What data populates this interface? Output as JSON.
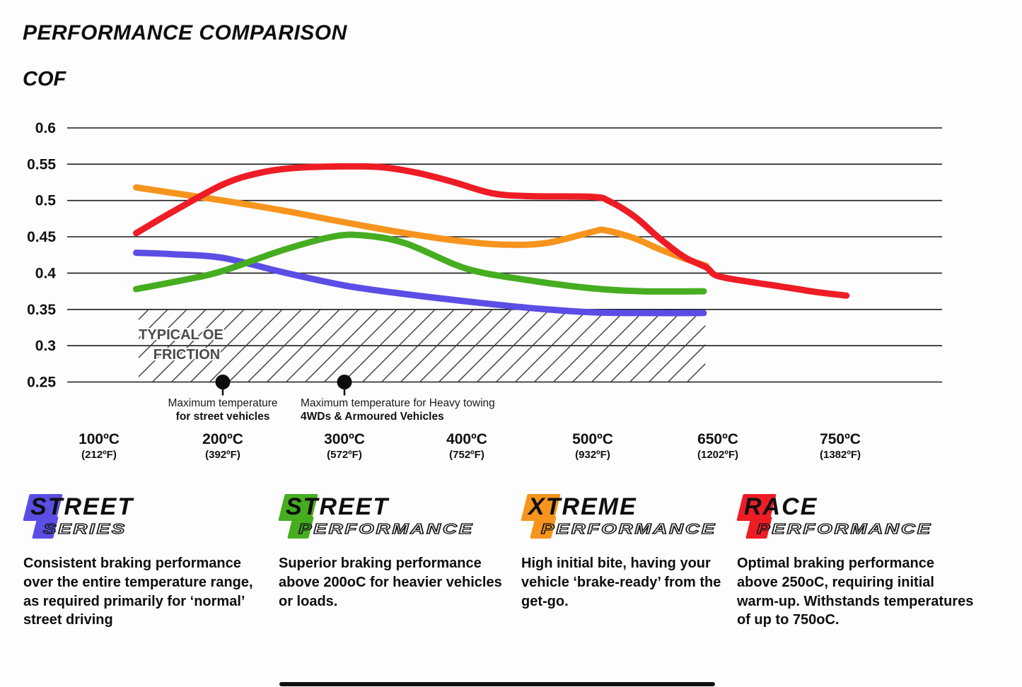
{
  "header": {
    "title": "PERFORMANCE COMPARISON",
    "axis_title": "COF"
  },
  "chart_data": {
    "type": "line",
    "title": "PERFORMANCE COMPARISON",
    "ylabel": "COF",
    "xlabel": "",
    "grid": "horizontal",
    "ylim": [
      0.25,
      0.6
    ],
    "ytick_step": 0.05,
    "yticks": [
      {
        "v": 0.6,
        "label": "0.6"
      },
      {
        "v": 0.55,
        "label": "0.55"
      },
      {
        "v": 0.5,
        "label": "0.5"
      },
      {
        "v": 0.45,
        "label": "0.45"
      },
      {
        "v": 0.4,
        "label": "0.4"
      },
      {
        "v": 0.35,
        "label": "0.35"
      },
      {
        "v": 0.3,
        "label": "0.3"
      },
      {
        "v": 0.25,
        "label": "0.25"
      }
    ],
    "xticks": [
      {
        "t": 100,
        "label": "100ºC",
        "sub": "(212ºF)"
      },
      {
        "t": 200,
        "label": "200ºC",
        "sub": "(392ºF)"
      },
      {
        "t": 300,
        "label": "300ºC",
        "sub": "(572ºF)"
      },
      {
        "t": 400,
        "label": "400ºC",
        "sub": "(752ºF)"
      },
      {
        "t": 500,
        "label": "500ºC",
        "sub": "(932ºF)"
      },
      {
        "t": 650,
        "label": "650ºC",
        "sub": "(1202ºF)"
      },
      {
        "t": 750,
        "label": "750ºC",
        "sub": "(1382ºF)"
      }
    ],
    "series": [
      {
        "name": "Street Series",
        "color": "#5b4ee4",
        "points": [
          [
            130,
            0.428
          ],
          [
            160,
            0.426
          ],
          [
            200,
            0.421
          ],
          [
            250,
            0.401
          ],
          [
            300,
            0.383
          ],
          [
            350,
            0.371
          ],
          [
            400,
            0.361
          ],
          [
            450,
            0.352
          ],
          [
            500,
            0.346
          ],
          [
            560,
            0.345
          ],
          [
            633,
            0.345
          ]
        ]
      },
      {
        "name": "Street Performance",
        "color": "#46ad21",
        "points": [
          [
            130,
            0.378
          ],
          [
            170,
            0.391
          ],
          [
            200,
            0.403
          ],
          [
            250,
            0.432
          ],
          [
            290,
            0.45
          ],
          [
            315,
            0.452
          ],
          [
            350,
            0.441
          ],
          [
            400,
            0.406
          ],
          [
            450,
            0.39
          ],
          [
            500,
            0.379
          ],
          [
            560,
            0.375
          ],
          [
            633,
            0.375
          ]
        ]
      },
      {
        "name": "Xtreme Performance",
        "color": "#f7941e",
        "points": [
          [
            130,
            0.518
          ],
          [
            200,
            0.5
          ],
          [
            250,
            0.486
          ],
          [
            300,
            0.47
          ],
          [
            350,
            0.455
          ],
          [
            400,
            0.443
          ],
          [
            435,
            0.439
          ],
          [
            465,
            0.442
          ],
          [
            500,
            0.457
          ],
          [
            515,
            0.459
          ],
          [
            550,
            0.448
          ],
          [
            580,
            0.433
          ],
          [
            610,
            0.42
          ],
          [
            636,
            0.41
          ]
        ]
      },
      {
        "name": "Race Performance",
        "color": "#ee1c25",
        "points": [
          [
            130,
            0.455
          ],
          [
            160,
            0.485
          ],
          [
            200,
            0.522
          ],
          [
            230,
            0.538
          ],
          [
            260,
            0.545
          ],
          [
            300,
            0.547
          ],
          [
            330,
            0.546
          ],
          [
            360,
            0.538
          ],
          [
            390,
            0.525
          ],
          [
            420,
            0.51
          ],
          [
            450,
            0.506
          ],
          [
            500,
            0.505
          ],
          [
            520,
            0.499
          ],
          [
            550,
            0.478
          ],
          [
            580,
            0.448
          ],
          [
            610,
            0.422
          ],
          [
            636,
            0.408
          ],
          [
            650,
            0.396
          ],
          [
            680,
            0.387
          ],
          [
            700,
            0.382
          ],
          [
            730,
            0.374
          ],
          [
            755,
            0.369
          ]
        ]
      }
    ],
    "oe_band": {
      "label_line1": "TYPICAL OE",
      "label_line2": "FRICTION",
      "t_start": 132,
      "t_end": 635,
      "cof_top": 0.35,
      "cof_bottom": 0.25
    },
    "annotations": [
      {
        "t": 200,
        "align": "center",
        "line1": "Maximum temperature",
        "line2": "for street vehicles"
      },
      {
        "t": 300,
        "align": "left",
        "line1": "Maximum temperature for Heavy towing",
        "line2": "4WDs & Armoured Vehicles"
      }
    ]
  },
  "legend": [
    {
      "brand_top": "STREET",
      "brand_bottom": "SERIES",
      "color": "#5b4ee4",
      "description": "Consistent braking performance over the entire temperature range, as required primarily for ‘normal’ street driving"
    },
    {
      "brand_top": "STREET",
      "brand_bottom": "PERFORMANCE",
      "color": "#46ad21",
      "description": "Superior braking performance above 200oC for heavier vehicles or loads."
    },
    {
      "brand_top": "XTREME",
      "brand_bottom": "PERFORMANCE",
      "color": "#f7941e",
      "description": "High initial bite, having your vehicle ‘brake-ready’ from the get-go."
    },
    {
      "brand_top": "RACE",
      "brand_bottom": "PERFORMANCE",
      "color": "#ee1c25",
      "description": "Optimal braking performance above 250oC, requiring initial warm-up. Withstands temperatures of up to 750oC."
    }
  ],
  "colors": {
    "street_series": "#5b4ee4",
    "street_performance": "#46ad21",
    "xtreme_performance": "#f7941e",
    "race_performance": "#ee1c25",
    "grid": "#1b1b1b",
    "hatch": "#3c3c3c",
    "oe_label": "#4a4a4a"
  }
}
